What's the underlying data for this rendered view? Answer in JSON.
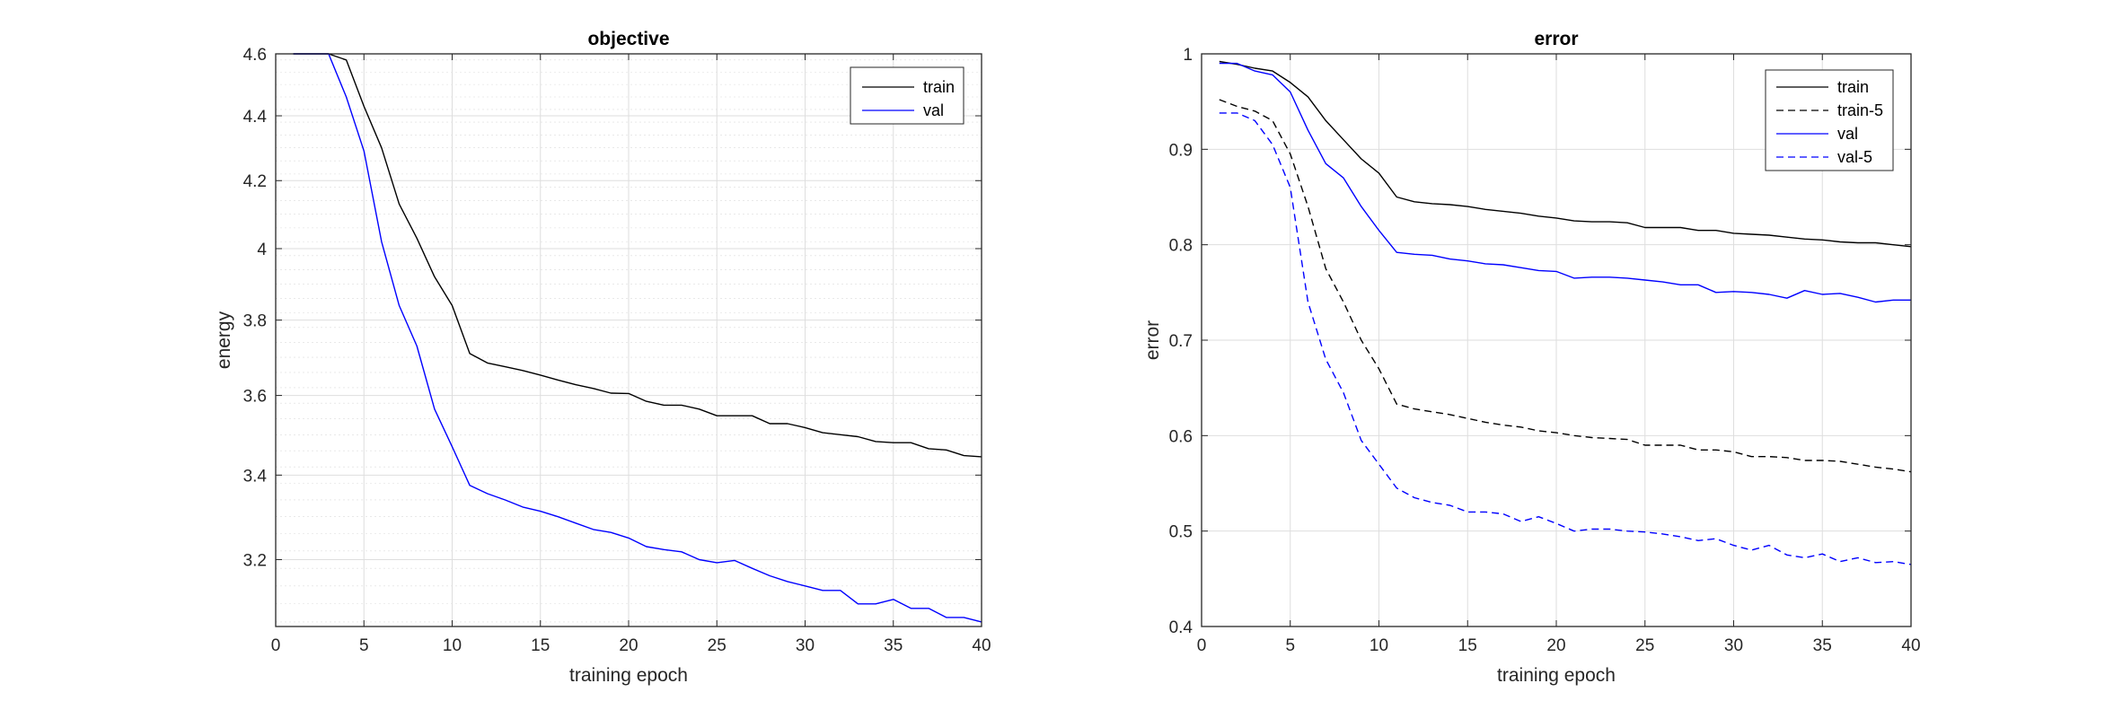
{
  "chart_data": [
    {
      "type": "line",
      "title": "objective",
      "xlabel": "training epoch",
      "ylabel": "energy",
      "xlim": [
        0,
        40
      ],
      "ylim": [
        3.05,
        4.6
      ],
      "yscale": "log",
      "xticks": [
        0,
        5,
        10,
        15,
        20,
        25,
        30,
        35,
        40
      ],
      "yticks": [
        3.2,
        3.4,
        3.6,
        3.8,
        4.0,
        4.2,
        4.4,
        4.6
      ],
      "xtick_labels": [
        "0",
        "5",
        "10",
        "15",
        "20",
        "25",
        "30",
        "35",
        "40"
      ],
      "ytick_labels": [
        "3.2",
        "3.4",
        "3.6",
        "3.8",
        "4",
        "4.2",
        "4.4",
        "4.6"
      ],
      "grid": true,
      "minor_grid": true,
      "legend_position": "top-right",
      "x": [
        1,
        2,
        3,
        4,
        5,
        6,
        7,
        8,
        9,
        10,
        11,
        12,
        13,
        14,
        15,
        16,
        17,
        18,
        19,
        20,
        21,
        22,
        23,
        24,
        25,
        26,
        27,
        28,
        29,
        30,
        31,
        32,
        33,
        34,
        35,
        36,
        37,
        38,
        39,
        40
      ],
      "series": [
        {
          "name": "train",
          "color": "#000000",
          "dash": "solid",
          "values": [
            4.6,
            4.6,
            4.6,
            4.58,
            4.43,
            4.3,
            4.13,
            4.03,
            3.92,
            3.84,
            3.71,
            3.685,
            3.675,
            3.665,
            3.653,
            3.64,
            3.628,
            3.618,
            3.606,
            3.605,
            3.585,
            3.575,
            3.575,
            3.565,
            3.548,
            3.548,
            3.548,
            3.528,
            3.528,
            3.518,
            3.505,
            3.5,
            3.495,
            3.483,
            3.48,
            3.48,
            3.465,
            3.462,
            3.448,
            3.445
          ]
        },
        {
          "name": "val",
          "color": "#0000ff",
          "dash": "solid",
          "values": [
            4.6,
            4.6,
            4.6,
            4.46,
            4.29,
            4.02,
            3.84,
            3.73,
            3.565,
            3.47,
            3.375,
            3.355,
            3.34,
            3.323,
            3.313,
            3.3,
            3.285,
            3.27,
            3.263,
            3.25,
            3.23,
            3.223,
            3.218,
            3.2,
            3.193,
            3.198,
            3.18,
            3.163,
            3.15,
            3.14,
            3.13,
            3.13,
            3.1,
            3.1,
            3.11,
            3.09,
            3.09,
            3.07,
            3.07,
            3.06
          ]
        }
      ]
    },
    {
      "type": "line",
      "title": "error",
      "xlabel": "training epoch",
      "ylabel": "error",
      "xlim": [
        0,
        40
      ],
      "ylim": [
        0.4,
        1.0
      ],
      "xticks": [
        0,
        5,
        10,
        15,
        20,
        25,
        30,
        35,
        40
      ],
      "yticks": [
        0.4,
        0.5,
        0.6,
        0.7,
        0.8,
        0.9,
        1.0
      ],
      "xtick_labels": [
        "0",
        "5",
        "10",
        "15",
        "20",
        "25",
        "30",
        "35",
        "40"
      ],
      "ytick_labels": [
        "0.4",
        "0.5",
        "0.6",
        "0.7",
        "0.8",
        "0.9",
        "1"
      ],
      "grid": true,
      "legend_position": "top-right",
      "x": [
        1,
        2,
        3,
        4,
        5,
        6,
        7,
        8,
        9,
        10,
        11,
        12,
        13,
        14,
        15,
        16,
        17,
        18,
        19,
        20,
        21,
        22,
        23,
        24,
        25,
        26,
        27,
        28,
        29,
        30,
        31,
        32,
        33,
        34,
        35,
        36,
        37,
        38,
        39,
        40
      ],
      "series": [
        {
          "name": "train",
          "color": "#000000",
          "dash": "solid",
          "values": [
            0.992,
            0.989,
            0.985,
            0.982,
            0.97,
            0.955,
            0.93,
            0.91,
            0.89,
            0.875,
            0.85,
            0.845,
            0.843,
            0.842,
            0.84,
            0.837,
            0.835,
            0.833,
            0.83,
            0.828,
            0.825,
            0.824,
            0.824,
            0.823,
            0.818,
            0.818,
            0.818,
            0.815,
            0.815,
            0.812,
            0.811,
            0.81,
            0.808,
            0.806,
            0.805,
            0.803,
            0.802,
            0.802,
            0.8,
            0.798
          ]
        },
        {
          "name": "train-5",
          "color": "#000000",
          "dash": "dashed",
          "values": [
            0.952,
            0.945,
            0.94,
            0.93,
            0.895,
            0.84,
            0.775,
            0.74,
            0.7,
            0.67,
            0.633,
            0.628,
            0.625,
            0.622,
            0.618,
            0.614,
            0.611,
            0.609,
            0.605,
            0.603,
            0.6,
            0.598,
            0.597,
            0.596,
            0.59,
            0.59,
            0.59,
            0.585,
            0.585,
            0.583,
            0.578,
            0.578,
            0.577,
            0.574,
            0.574,
            0.573,
            0.57,
            0.567,
            0.565,
            0.562
          ]
        },
        {
          "name": "val",
          "color": "#0000ff",
          "dash": "solid",
          "values": [
            0.99,
            0.99,
            0.982,
            0.978,
            0.96,
            0.92,
            0.885,
            0.87,
            0.84,
            0.815,
            0.792,
            0.79,
            0.789,
            0.785,
            0.783,
            0.78,
            0.779,
            0.776,
            0.773,
            0.772,
            0.765,
            0.766,
            0.766,
            0.765,
            0.763,
            0.761,
            0.758,
            0.758,
            0.75,
            0.751,
            0.75,
            0.748,
            0.744,
            0.752,
            0.748,
            0.749,
            0.745,
            0.74,
            0.742,
            0.742
          ]
        },
        {
          "name": "val-5",
          "color": "#0000ff",
          "dash": "dashed",
          "values": [
            0.938,
            0.938,
            0.93,
            0.905,
            0.86,
            0.74,
            0.68,
            0.645,
            0.595,
            0.57,
            0.545,
            0.535,
            0.53,
            0.527,
            0.52,
            0.52,
            0.518,
            0.51,
            0.515,
            0.508,
            0.5,
            0.502,
            0.502,
            0.5,
            0.499,
            0.497,
            0.494,
            0.49,
            0.492,
            0.485,
            0.48,
            0.485,
            0.475,
            0.472,
            0.476,
            0.468,
            0.472,
            0.467,
            0.468,
            0.465
          ]
        }
      ]
    }
  ]
}
